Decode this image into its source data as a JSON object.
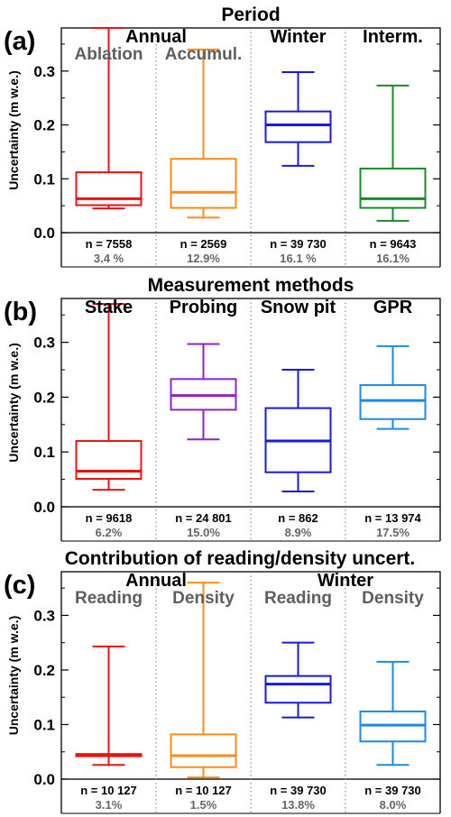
{
  "figure": {
    "y_axis_label": "Uncertainty (m w.e.)"
  },
  "chart_data": [
    {
      "type": "box",
      "panel_label": "(a)",
      "title": "Period",
      "ylabel": "Uncertainty (m w.e.)",
      "ylim": [
        0,
        0.38
      ],
      "yticks": [
        "0.0",
        "0.1",
        "0.2",
        "0.3"
      ],
      "group_labels": [
        {
          "text": "Annual",
          "span": [
            0,
            1
          ],
          "color": "#000000"
        },
        {
          "text": "Winter",
          "span": [
            2,
            2
          ],
          "color": "#000000"
        },
        {
          "text": "Interm.",
          "span": [
            3,
            3
          ],
          "color": "#000000"
        }
      ],
      "series": [
        {
          "label": "Ablation",
          "color": "#ee1111",
          "min": 0.045,
          "q1": 0.051,
          "median": 0.063,
          "q3": 0.112,
          "max": 0.38,
          "n": "n = 7558",
          "pct": "3.4 %"
        },
        {
          "label": "Accumul.",
          "color": "#ff8c1a",
          "min": 0.028,
          "q1": 0.046,
          "median": 0.075,
          "q3": 0.137,
          "max": 0.34,
          "n": "n = 2569",
          "pct": "12.9%"
        },
        {
          "label": "",
          "color": "#1a1adc",
          "min": 0.124,
          "q1": 0.168,
          "median": 0.2,
          "q3": 0.225,
          "max": 0.298,
          "n": "n = 39 730",
          "pct": "16.1 %"
        },
        {
          "label": "",
          "color": "#1a8a2e",
          "min": 0.022,
          "q1": 0.046,
          "median": 0.063,
          "q3": 0.119,
          "max": 0.273,
          "n": "n = 9643",
          "pct": "16.1%"
        }
      ]
    },
    {
      "type": "box",
      "panel_label": "(b)",
      "title": "Measurement methods",
      "ylabel": "Uncertainty (m w.e.)",
      "ylim": [
        0,
        0.38
      ],
      "yticks": [
        "0.0",
        "0.1",
        "0.2",
        "0.3"
      ],
      "group_labels": [
        {
          "text": "Stake",
          "span": [
            0,
            0
          ],
          "color": "#000000"
        },
        {
          "text": "Probing",
          "span": [
            1,
            1
          ],
          "color": "#000000"
        },
        {
          "text": "Snow pit",
          "span": [
            2,
            2
          ],
          "color": "#000000"
        },
        {
          "text": "GPR",
          "span": [
            3,
            3
          ],
          "color": "#000000"
        }
      ],
      "series": [
        {
          "label": "",
          "color": "#ee1111",
          "min": 0.031,
          "q1": 0.051,
          "median": 0.065,
          "q3": 0.12,
          "max": 0.37,
          "n": "n = 9618",
          "pct": "6.2%"
        },
        {
          "label": "",
          "color": "#8f22c8",
          "min": 0.123,
          "q1": 0.177,
          "median": 0.203,
          "q3": 0.233,
          "max": 0.297,
          "n": "n = 24 801",
          "pct": "15.0%"
        },
        {
          "label": "",
          "color": "#1a1adc",
          "min": 0.028,
          "q1": 0.063,
          "median": 0.12,
          "q3": 0.18,
          "max": 0.25,
          "n": "n = 862",
          "pct": "8.9%"
        },
        {
          "label": "",
          "color": "#1a8af0",
          "min": 0.142,
          "q1": 0.16,
          "median": 0.194,
          "q3": 0.222,
          "max": 0.293,
          "n": "n = 13 974",
          "pct": "17.5%"
        }
      ]
    },
    {
      "type": "box",
      "panel_label": "(c)",
      "title": "Contribution of reading/density uncert.",
      "ylabel": "Uncertainty (m w.e.)",
      "ylim": [
        0,
        0.38
      ],
      "yticks": [
        "0.0",
        "0.1",
        "0.2",
        "0.3"
      ],
      "group_labels": [
        {
          "text": "Annual",
          "span": [
            0,
            1
          ],
          "color": "#000000"
        },
        {
          "text": "Winter",
          "span": [
            2,
            3
          ],
          "color": "#000000"
        }
      ],
      "series": [
        {
          "label": "Reading",
          "color": "#ee1111",
          "min": 0.026,
          "q1": 0.042,
          "median": 0.044,
          "q3": 0.046,
          "max": 0.243,
          "n": "n = 10 127",
          "pct": "3.1%"
        },
        {
          "label": "Density",
          "color": "#ff8c1a",
          "min": 0.003,
          "q1": 0.022,
          "median": 0.043,
          "q3": 0.082,
          "max": 0.36,
          "n": "n = 10 127",
          "pct": "1.5%"
        },
        {
          "label": "Reading",
          "color": "#1a1adc",
          "min": 0.113,
          "q1": 0.14,
          "median": 0.174,
          "q3": 0.189,
          "max": 0.25,
          "n": "n = 39 730",
          "pct": "13.8%"
        },
        {
          "label": "Density",
          "color": "#1a8af0",
          "min": 0.026,
          "q1": 0.069,
          "median": 0.099,
          "q3": 0.124,
          "max": 0.215,
          "n": "n = 39 730",
          "pct": "8.0%"
        }
      ]
    }
  ]
}
